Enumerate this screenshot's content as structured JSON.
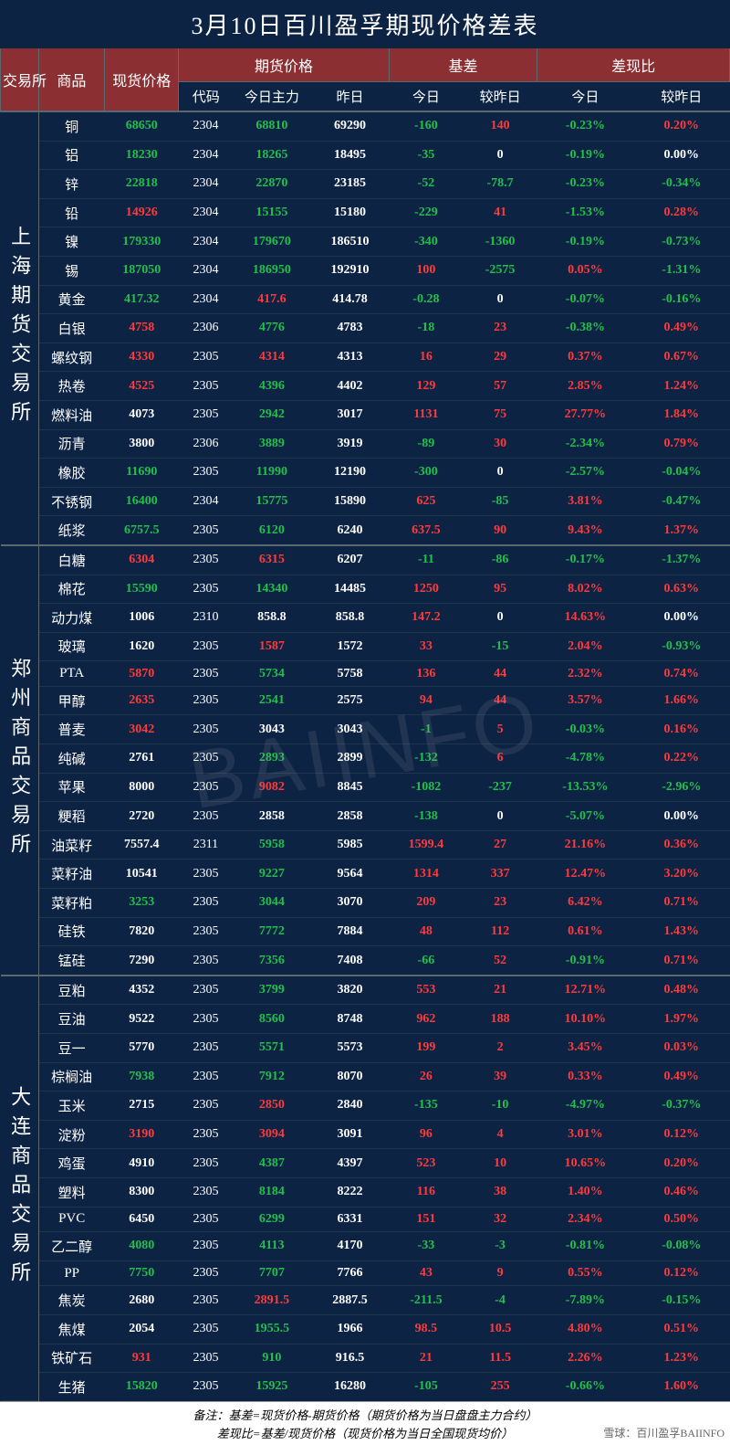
{
  "title": "3月10日百川盈孚期现价格差表",
  "watermark": "BAIINFO",
  "header": {
    "exch": "交易所",
    "product": "商品",
    "spot": "现货价格",
    "futures_group": "期货价格",
    "code": "代码",
    "today_main": "今日主力",
    "yesterday": "昨日",
    "basis_group": "基差",
    "today": "今日",
    "vs_yday": "较昨日",
    "ratio_group": "差现比",
    "ratio_today": "今日",
    "ratio_vs": "较昨日"
  },
  "colors": {
    "bg": "#0d2344",
    "header_bg": "#8b2f33",
    "pos": "#ff3a3a",
    "neg": "#22c04b",
    "text": "#ffffff"
  },
  "exchanges": [
    {
      "name": "上海期货交易所",
      "rows": [
        {
          "prod": "铜",
          "spot": 68650,
          "spot_c": "neg",
          "code": 2304,
          "main": 68810,
          "main_c": "neg",
          "yday": 69290,
          "bas": -160,
          "bas_c": "neg",
          "basv": 140,
          "basv_c": "pos",
          "r1": "-0.23%",
          "r1_c": "neg",
          "r2": "0.20%",
          "r2_c": "pos"
        },
        {
          "prod": "铝",
          "spot": 18230,
          "spot_c": "neg",
          "code": 2304,
          "main": 18265,
          "main_c": "neg",
          "yday": 18495,
          "bas": -35,
          "bas_c": "neg",
          "basv": 0,
          "basv_c": "zero",
          "r1": "-0.19%",
          "r1_c": "neg",
          "r2": "0.00%",
          "r2_c": "zero"
        },
        {
          "prod": "锌",
          "spot": 22818,
          "spot_c": "neg",
          "code": 2304,
          "main": 22870,
          "main_c": "neg",
          "yday": 23185,
          "bas": -52,
          "bas_c": "neg",
          "basv": -78.7,
          "basv_c": "neg",
          "r1": "-0.23%",
          "r1_c": "neg",
          "r2": "-0.34%",
          "r2_c": "neg"
        },
        {
          "prod": "铅",
          "spot": 14926,
          "spot_c": "pos",
          "code": 2304,
          "main": 15155,
          "main_c": "neg",
          "yday": 15180,
          "bas": -229,
          "bas_c": "neg",
          "basv": 41,
          "basv_c": "pos",
          "r1": "-1.53%",
          "r1_c": "neg",
          "r2": "0.28%",
          "r2_c": "pos"
        },
        {
          "prod": "镍",
          "spot": 179330,
          "spot_c": "neg",
          "code": 2304,
          "main": 179670,
          "main_c": "neg",
          "yday": 186510,
          "bas": -340,
          "bas_c": "neg",
          "basv": -1360,
          "basv_c": "neg",
          "r1": "-0.19%",
          "r1_c": "neg",
          "r2": "-0.73%",
          "r2_c": "neg"
        },
        {
          "prod": "锡",
          "spot": 187050,
          "spot_c": "neg",
          "code": 2304,
          "main": 186950,
          "main_c": "neg",
          "yday": 192910,
          "bas": 100,
          "bas_c": "pos",
          "basv": -2575,
          "basv_c": "neg",
          "r1": "0.05%",
          "r1_c": "pos",
          "r2": "-1.31%",
          "r2_c": "neg"
        },
        {
          "prod": "黄金",
          "spot": 417.32,
          "spot_c": "neg",
          "code": 2304,
          "main": 417.6,
          "main_c": "pos",
          "yday": 414.78,
          "bas": -0.28,
          "bas_c": "neg",
          "basv": 0,
          "basv_c": "zero",
          "r1": "-0.07%",
          "r1_c": "neg",
          "r2": "-0.16%",
          "r2_c": "neg"
        },
        {
          "prod": "白银",
          "spot": 4758,
          "spot_c": "pos",
          "code": 2306,
          "main": 4776,
          "main_c": "neg",
          "yday": 4783,
          "bas": -18,
          "bas_c": "neg",
          "basv": 23,
          "basv_c": "pos",
          "r1": "-0.38%",
          "r1_c": "neg",
          "r2": "0.49%",
          "r2_c": "pos"
        },
        {
          "prod": "螺纹钢",
          "spot": 4330,
          "spot_c": "pos",
          "code": 2305,
          "main": 4314,
          "main_c": "pos",
          "yday": 4313,
          "bas": 16,
          "bas_c": "pos",
          "basv": 29,
          "basv_c": "pos",
          "r1": "0.37%",
          "r1_c": "pos",
          "r2": "0.67%",
          "r2_c": "pos"
        },
        {
          "prod": "热卷",
          "spot": 4525,
          "spot_c": "pos",
          "code": 2305,
          "main": 4396,
          "main_c": "neg",
          "yday": 4402,
          "bas": 129,
          "bas_c": "pos",
          "basv": 57,
          "basv_c": "pos",
          "r1": "2.85%",
          "r1_c": "pos",
          "r2": "1.24%",
          "r2_c": "pos"
        },
        {
          "prod": "燃料油",
          "spot": 4073,
          "spot_c": "zero",
          "code": 2305,
          "main": 2942,
          "main_c": "neg",
          "yday": 3017,
          "bas": 1131,
          "bas_c": "pos",
          "basv": 75,
          "basv_c": "pos",
          "r1": "27.77%",
          "r1_c": "pos",
          "r2": "1.84%",
          "r2_c": "pos"
        },
        {
          "prod": "沥青",
          "spot": 3800,
          "spot_c": "zero",
          "code": 2306,
          "main": 3889,
          "main_c": "neg",
          "yday": 3919,
          "bas": -89,
          "bas_c": "neg",
          "basv": 30,
          "basv_c": "pos",
          "r1": "-2.34%",
          "r1_c": "neg",
          "r2": "0.79%",
          "r2_c": "pos"
        },
        {
          "prod": "橡胶",
          "spot": 11690,
          "spot_c": "neg",
          "code": 2305,
          "main": 11990,
          "main_c": "neg",
          "yday": 12190,
          "bas": -300,
          "bas_c": "neg",
          "basv": 0,
          "basv_c": "zero",
          "r1": "-2.57%",
          "r1_c": "neg",
          "r2": "-0.04%",
          "r2_c": "neg"
        },
        {
          "prod": "不锈钢",
          "spot": 16400,
          "spot_c": "neg",
          "code": 2304,
          "main": 15775,
          "main_c": "neg",
          "yday": 15890,
          "bas": 625,
          "bas_c": "pos",
          "basv": -85,
          "basv_c": "neg",
          "r1": "3.81%",
          "r1_c": "pos",
          "r2": "-0.47%",
          "r2_c": "neg"
        },
        {
          "prod": "纸浆",
          "spot": 6757.5,
          "spot_c": "neg",
          "code": 2305,
          "main": 6120,
          "main_c": "neg",
          "yday": 6240,
          "bas": 637.5,
          "bas_c": "pos",
          "basv": 90,
          "basv_c": "pos",
          "r1": "9.43%",
          "r1_c": "pos",
          "r2": "1.37%",
          "r2_c": "pos"
        }
      ]
    },
    {
      "name": "郑州商品交易所",
      "rows": [
        {
          "prod": "白糖",
          "spot": 6304,
          "spot_c": "pos",
          "code": 2305,
          "main": 6315,
          "main_c": "pos",
          "yday": 6207,
          "bas": -11,
          "bas_c": "neg",
          "basv": -86,
          "basv_c": "neg",
          "r1": "-0.17%",
          "r1_c": "neg",
          "r2": "-1.37%",
          "r2_c": "neg"
        },
        {
          "prod": "棉花",
          "spot": 15590,
          "spot_c": "neg",
          "code": 2305,
          "main": 14340,
          "main_c": "neg",
          "yday": 14485,
          "bas": 1250,
          "bas_c": "pos",
          "basv": 95,
          "basv_c": "pos",
          "r1": "8.02%",
          "r1_c": "pos",
          "r2": "0.63%",
          "r2_c": "pos"
        },
        {
          "prod": "动力煤",
          "spot": 1006,
          "spot_c": "zero",
          "code": 2310,
          "main": 858.8,
          "main_c": "zero",
          "yday": 858.8,
          "bas": 147.2,
          "bas_c": "pos",
          "basv": 0,
          "basv_c": "zero",
          "r1": "14.63%",
          "r1_c": "pos",
          "r2": "0.00%",
          "r2_c": "zero"
        },
        {
          "prod": "玻璃",
          "spot": 1620,
          "spot_c": "zero",
          "code": 2305,
          "main": 1587,
          "main_c": "pos",
          "yday": 1572,
          "bas": 33,
          "bas_c": "pos",
          "basv": -15,
          "basv_c": "neg",
          "r1": "2.04%",
          "r1_c": "pos",
          "r2": "-0.93%",
          "r2_c": "neg"
        },
        {
          "prod": "PTA",
          "spot": 5870,
          "spot_c": "pos",
          "code": 2305,
          "main": 5734,
          "main_c": "neg",
          "yday": 5758,
          "bas": 136,
          "bas_c": "pos",
          "basv": 44,
          "basv_c": "pos",
          "r1": "2.32%",
          "r1_c": "pos",
          "r2": "0.74%",
          "r2_c": "pos"
        },
        {
          "prod": "甲醇",
          "spot": 2635,
          "spot_c": "pos",
          "code": 2305,
          "main": 2541,
          "main_c": "neg",
          "yday": 2575,
          "bas": 94,
          "bas_c": "pos",
          "basv": 44,
          "basv_c": "pos",
          "r1": "3.57%",
          "r1_c": "pos",
          "r2": "1.66%",
          "r2_c": "pos"
        },
        {
          "prod": "普麦",
          "spot": 3042,
          "spot_c": "pos",
          "code": 2305,
          "main": 3043,
          "main_c": "zero",
          "yday": 3043,
          "bas": -1,
          "bas_c": "neg",
          "basv": 5,
          "basv_c": "pos",
          "r1": "-0.03%",
          "r1_c": "neg",
          "r2": "0.16%",
          "r2_c": "pos"
        },
        {
          "prod": "纯碱",
          "spot": 2761,
          "spot_c": "zero",
          "code": 2305,
          "main": 2893,
          "main_c": "neg",
          "yday": 2899,
          "bas": -132,
          "bas_c": "neg",
          "basv": 6,
          "basv_c": "pos",
          "r1": "-4.78%",
          "r1_c": "neg",
          "r2": "0.22%",
          "r2_c": "pos"
        },
        {
          "prod": "苹果",
          "spot": 8000,
          "spot_c": "zero",
          "code": 2305,
          "main": 9082,
          "main_c": "pos",
          "yday": 8845,
          "bas": -1082,
          "bas_c": "neg",
          "basv": -237,
          "basv_c": "neg",
          "r1": "-13.53%",
          "r1_c": "neg",
          "r2": "-2.96%",
          "r2_c": "neg"
        },
        {
          "prod": "粳稻",
          "spot": 2720,
          "spot_c": "zero",
          "code": 2305,
          "main": 2858,
          "main_c": "zero",
          "yday": 2858,
          "bas": -138,
          "bas_c": "neg",
          "basv": 0,
          "basv_c": "zero",
          "r1": "-5.07%",
          "r1_c": "neg",
          "r2": "0.00%",
          "r2_c": "zero"
        },
        {
          "prod": "油菜籽",
          "spot": 7557.4,
          "spot_c": "zero",
          "code": 2311,
          "main": 5958,
          "main_c": "neg",
          "yday": 5985,
          "bas": 1599.4,
          "bas_c": "pos",
          "basv": 27,
          "basv_c": "pos",
          "r1": "21.16%",
          "r1_c": "pos",
          "r2": "0.36%",
          "r2_c": "pos"
        },
        {
          "prod": "菜籽油",
          "spot": 10541,
          "spot_c": "zero",
          "code": 2305,
          "main": 9227,
          "main_c": "neg",
          "yday": 9564,
          "bas": 1314,
          "bas_c": "pos",
          "basv": 337,
          "basv_c": "pos",
          "r1": "12.47%",
          "r1_c": "pos",
          "r2": "3.20%",
          "r2_c": "pos"
        },
        {
          "prod": "菜籽粕",
          "spot": 3253,
          "spot_c": "neg",
          "code": 2305,
          "main": 3044,
          "main_c": "neg",
          "yday": 3070,
          "bas": 209,
          "bas_c": "pos",
          "basv": 23,
          "basv_c": "pos",
          "r1": "6.42%",
          "r1_c": "pos",
          "r2": "0.71%",
          "r2_c": "pos"
        },
        {
          "prod": "硅铁",
          "spot": 7820,
          "spot_c": "zero",
          "code": 2305,
          "main": 7772,
          "main_c": "neg",
          "yday": 7884,
          "bas": 48,
          "bas_c": "pos",
          "basv": 112,
          "basv_c": "pos",
          "r1": "0.61%",
          "r1_c": "pos",
          "r2": "1.43%",
          "r2_c": "pos"
        },
        {
          "prod": "锰硅",
          "spot": 7290,
          "spot_c": "zero",
          "code": 2305,
          "main": 7356,
          "main_c": "neg",
          "yday": 7408,
          "bas": -66,
          "bas_c": "neg",
          "basv": 52,
          "basv_c": "pos",
          "r1": "-0.91%",
          "r1_c": "neg",
          "r2": "0.71%",
          "r2_c": "pos"
        }
      ]
    },
    {
      "name": "大连商品交易所",
      "rows": [
        {
          "prod": "豆粕",
          "spot": 4352,
          "spot_c": "zero",
          "code": 2305,
          "main": 3799,
          "main_c": "neg",
          "yday": 3820,
          "bas": 553,
          "bas_c": "pos",
          "basv": 21,
          "basv_c": "pos",
          "r1": "12.71%",
          "r1_c": "pos",
          "r2": "0.48%",
          "r2_c": "pos"
        },
        {
          "prod": "豆油",
          "spot": 9522,
          "spot_c": "zero",
          "code": 2305,
          "main": 8560,
          "main_c": "neg",
          "yday": 8748,
          "bas": 962,
          "bas_c": "pos",
          "basv": 188,
          "basv_c": "pos",
          "r1": "10.10%",
          "r1_c": "pos",
          "r2": "1.97%",
          "r2_c": "pos"
        },
        {
          "prod": "豆一",
          "spot": 5770,
          "spot_c": "zero",
          "code": 2305,
          "main": 5571,
          "main_c": "neg",
          "yday": 5573,
          "bas": 199,
          "bas_c": "pos",
          "basv": 2,
          "basv_c": "pos",
          "r1": "3.45%",
          "r1_c": "pos",
          "r2": "0.03%",
          "r2_c": "pos"
        },
        {
          "prod": "棕榈油",
          "spot": 7938,
          "spot_c": "neg",
          "code": 2305,
          "main": 7912,
          "main_c": "neg",
          "yday": 8070,
          "bas": 26,
          "bas_c": "pos",
          "basv": 39,
          "basv_c": "pos",
          "r1": "0.33%",
          "r1_c": "pos",
          "r2": "0.49%",
          "r2_c": "pos"
        },
        {
          "prod": "玉米",
          "spot": 2715,
          "spot_c": "zero",
          "code": 2305,
          "main": 2850,
          "main_c": "pos",
          "yday": 2840,
          "bas": -135,
          "bas_c": "neg",
          "basv": -10,
          "basv_c": "neg",
          "r1": "-4.97%",
          "r1_c": "neg",
          "r2": "-0.37%",
          "r2_c": "neg"
        },
        {
          "prod": "淀粉",
          "spot": 3190,
          "spot_c": "pos",
          "code": 2305,
          "main": 3094,
          "main_c": "pos",
          "yday": 3091,
          "bas": 96,
          "bas_c": "pos",
          "basv": 4,
          "basv_c": "pos",
          "r1": "3.01%",
          "r1_c": "pos",
          "r2": "0.12%",
          "r2_c": "pos"
        },
        {
          "prod": "鸡蛋",
          "spot": 4910,
          "spot_c": "zero",
          "code": 2305,
          "main": 4387,
          "main_c": "neg",
          "yday": 4397,
          "bas": 523,
          "bas_c": "pos",
          "basv": 10,
          "basv_c": "pos",
          "r1": "10.65%",
          "r1_c": "pos",
          "r2": "0.20%",
          "r2_c": "pos"
        },
        {
          "prod": "塑料",
          "spot": 8300,
          "spot_c": "zero",
          "code": 2305,
          "main": 8184,
          "main_c": "neg",
          "yday": 8222,
          "bas": 116,
          "bas_c": "pos",
          "basv": 38,
          "basv_c": "pos",
          "r1": "1.40%",
          "r1_c": "pos",
          "r2": "0.46%",
          "r2_c": "pos"
        },
        {
          "prod": "PVC",
          "spot": 6450,
          "spot_c": "zero",
          "code": 2305,
          "main": 6299,
          "main_c": "neg",
          "yday": 6331,
          "bas": 151,
          "bas_c": "pos",
          "basv": 32,
          "basv_c": "pos",
          "r1": "2.34%",
          "r1_c": "pos",
          "r2": "0.50%",
          "r2_c": "pos"
        },
        {
          "prod": "乙二醇",
          "spot": 4080,
          "spot_c": "neg",
          "code": 2305,
          "main": 4113,
          "main_c": "neg",
          "yday": 4170,
          "bas": -33,
          "bas_c": "neg",
          "basv": -3,
          "basv_c": "neg",
          "r1": "-0.81%",
          "r1_c": "neg",
          "r2": "-0.08%",
          "r2_c": "neg"
        },
        {
          "prod": "PP",
          "spot": 7750,
          "spot_c": "neg",
          "code": 2305,
          "main": 7707,
          "main_c": "neg",
          "yday": 7766,
          "bas": 43,
          "bas_c": "pos",
          "basv": 9,
          "basv_c": "pos",
          "r1": "0.55%",
          "r1_c": "pos",
          "r2": "0.12%",
          "r2_c": "pos"
        },
        {
          "prod": "焦炭",
          "spot": 2680,
          "spot_c": "zero",
          "code": 2305,
          "main": 2891.5,
          "main_c": "pos",
          "yday": 2887.5,
          "bas": -211.5,
          "bas_c": "neg",
          "basv": -4,
          "basv_c": "neg",
          "r1": "-7.89%",
          "r1_c": "neg",
          "r2": "-0.15%",
          "r2_c": "neg"
        },
        {
          "prod": "焦煤",
          "spot": 2054,
          "spot_c": "zero",
          "code": 2305,
          "main": 1955.5,
          "main_c": "neg",
          "yday": 1966,
          "bas": 98.5,
          "bas_c": "pos",
          "basv": 10.5,
          "basv_c": "pos",
          "r1": "4.80%",
          "r1_c": "pos",
          "r2": "0.51%",
          "r2_c": "pos"
        },
        {
          "prod": "铁矿石",
          "spot": 931,
          "spot_c": "pos",
          "code": 2305,
          "main": 910,
          "main_c": "neg",
          "yday": 916.5,
          "bas": 21,
          "bas_c": "pos",
          "basv": 11.5,
          "basv_c": "pos",
          "r1": "2.26%",
          "r1_c": "pos",
          "r2": "1.23%",
          "r2_c": "pos"
        },
        {
          "prod": "生猪",
          "spot": 15820,
          "spot_c": "neg",
          "code": 2305,
          "main": 15925,
          "main_c": "neg",
          "yday": 16280,
          "bas": -105,
          "bas_c": "neg",
          "basv": 255,
          "basv_c": "pos",
          "r1": "-0.66%",
          "r1_c": "neg",
          "r2": "1.60%",
          "r2_c": "pos"
        }
      ]
    }
  ],
  "footer": {
    "line1": "备注：基差=现货价格-期货价格（期货价格为当日盘盘主力合约）",
    "line2": "差现比=基差/现货价格（现货价格为当日全国现货均价）",
    "source": "雪球：百川盈孚BAIINFO"
  }
}
